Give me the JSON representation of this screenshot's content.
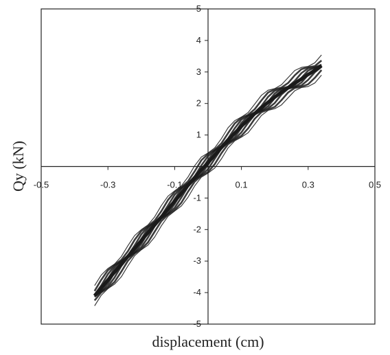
{
  "chart_data": {
    "type": "line",
    "title": "",
    "xlabel": "displacement (cm)",
    "ylabel": "Qy (kN)",
    "xlim": [
      -0.5,
      0.5
    ],
    "ylim": [
      -5,
      5
    ],
    "xticks": [
      -0.5,
      -0.3,
      -0.1,
      0.1,
      0.3,
      0.5
    ],
    "xtick_labels": [
      "-0.5",
      "-0.3",
      "-0.1",
      "0.1",
      "0.3",
      "0.5"
    ],
    "yticks": [
      -5,
      -4,
      -3,
      -2,
      -1,
      1,
      2,
      3,
      4,
      5
    ],
    "ytick_labels": [
      "-5",
      "-4",
      "-3",
      "-2",
      "-1",
      "1",
      "2",
      "3",
      "4",
      "5"
    ],
    "grid": false,
    "series": [
      {
        "x": [
          -0.34,
          -0.32,
          -0.3,
          -0.28,
          -0.26,
          -0.24,
          -0.22,
          -0.2,
          -0.18,
          -0.16,
          -0.14,
          -0.12,
          -0.1,
          -0.08,
          -0.06,
          -0.04,
          -0.02,
          0.0,
          0.02,
          0.04,
          0.06,
          0.08,
          0.1,
          0.12,
          0.14,
          0.16,
          0.18,
          0.2,
          0.22,
          0.24,
          0.26,
          0.28,
          0.3,
          0.32,
          0.34
        ],
        "y": [
          -4.1,
          -3.85,
          -3.6,
          -3.35,
          -3.1,
          -2.85,
          -2.6,
          -2.35,
          -2.1,
          -1.85,
          -1.6,
          -1.35,
          -1.1,
          -0.85,
          -0.6,
          -0.35,
          -0.1,
          0.12,
          0.36,
          0.6,
          0.84,
          1.06,
          1.28,
          1.48,
          1.68,
          1.86,
          2.04,
          2.2,
          2.36,
          2.5,
          2.64,
          2.78,
          2.92,
          3.05,
          3.2
        ],
        "color": "#1a1a1a"
      }
    ]
  }
}
